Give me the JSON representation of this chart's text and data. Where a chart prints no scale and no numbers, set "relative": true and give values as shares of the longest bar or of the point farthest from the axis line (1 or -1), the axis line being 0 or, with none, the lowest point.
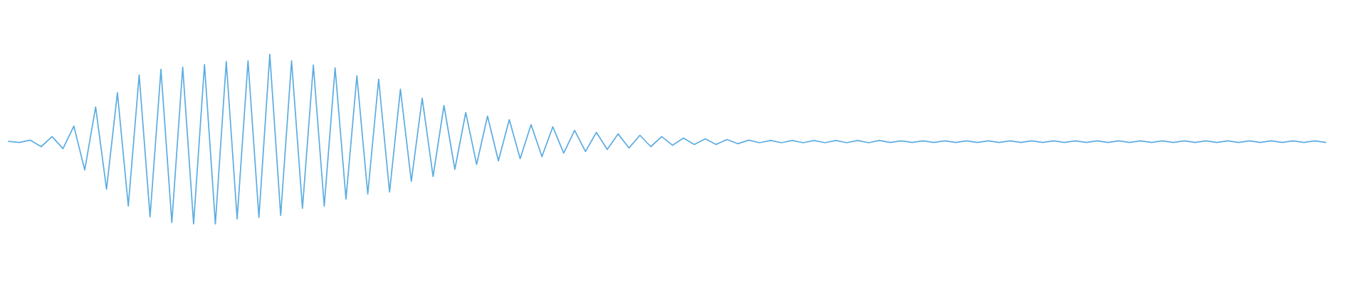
{
  "chart_data": {
    "type": "line",
    "relative": true,
    "color": "#5dade2",
    "categories": [
      null,
      null,
      null,
      null,
      null,
      null,
      null,
      null,
      null,
      null,
      null,
      null,
      null,
      null,
      null,
      null,
      null,
      null,
      null,
      null,
      null,
      null,
      null,
      null,
      null,
      null,
      null,
      null,
      null,
      null,
      null,
      null,
      null,
      null,
      null,
      null,
      null,
      null,
      null,
      null,
      null,
      null,
      null,
      null,
      null,
      null,
      null,
      null,
      null,
      null,
      null,
      null,
      null,
      null,
      null,
      null,
      null,
      null,
      null,
      null,
      null,
      null,
      null,
      null,
      null,
      null,
      null,
      null,
      null,
      null,
      null,
      null,
      null,
      null,
      null,
      null,
      null,
      null,
      null,
      null,
      null,
      null,
      null,
      null,
      null,
      null,
      null,
      null,
      null,
      null,
      null,
      null,
      null,
      null,
      null,
      null,
      null,
      null,
      null,
      null,
      null,
      null,
      null,
      null,
      null,
      null,
      null,
      null,
      null,
      null,
      null,
      null,
      null,
      null,
      null,
      null,
      null,
      null,
      null,
      null,
      null,
      null
    ],
    "values": [
      0.487,
      0.481,
      0.494,
      0.456,
      0.515,
      0.444,
      0.577,
      0.318,
      0.69,
      0.205,
      0.774,
      0.105,
      0.879,
      0.042,
      0.912,
      0.008,
      0.925,
      0,
      0.941,
      0,
      0.958,
      0.029,
      0.962,
      0.038,
      1,
      0.05,
      0.962,
      0.092,
      0.937,
      0.105,
      0.921,
      0.146,
      0.874,
      0.176,
      0.854,
      0.188,
      0.795,
      0.251,
      0.741,
      0.28,
      0.699,
      0.322,
      0.657,
      0.351,
      0.636,
      0.372,
      0.615,
      0.385,
      0.586,
      0.397,
      0.573,
      0.418,
      0.552,
      0.427,
      0.54,
      0.439,
      0.531,
      0.448,
      0.523,
      0.456,
      0.515,
      0.464,
      0.506,
      0.469,
      0.502,
      0.469,
      0.498,
      0.473,
      0.494,
      0.479,
      0.492,
      0.479,
      0.492,
      0.479,
      0.492,
      0.479,
      0.492,
      0.479,
      0.492,
      0.479,
      0.492,
      0.481,
      0.49,
      0.481,
      0.49,
      0.481,
      0.49,
      0.481,
      0.49,
      0.481,
      0.49,
      0.481,
      0.49,
      0.481,
      0.49,
      0.481,
      0.49,
      0.481,
      0.49,
      0.481,
      0.49,
      0.481,
      0.49,
      0.481,
      0.49,
      0.481,
      0.49,
      0.481,
      0.49,
      0.481,
      0.49,
      0.481,
      0.49,
      0.481,
      0.49,
      0.481,
      0.49,
      0.481,
      0.49,
      0.481,
      0.49,
      0.481
    ]
  }
}
